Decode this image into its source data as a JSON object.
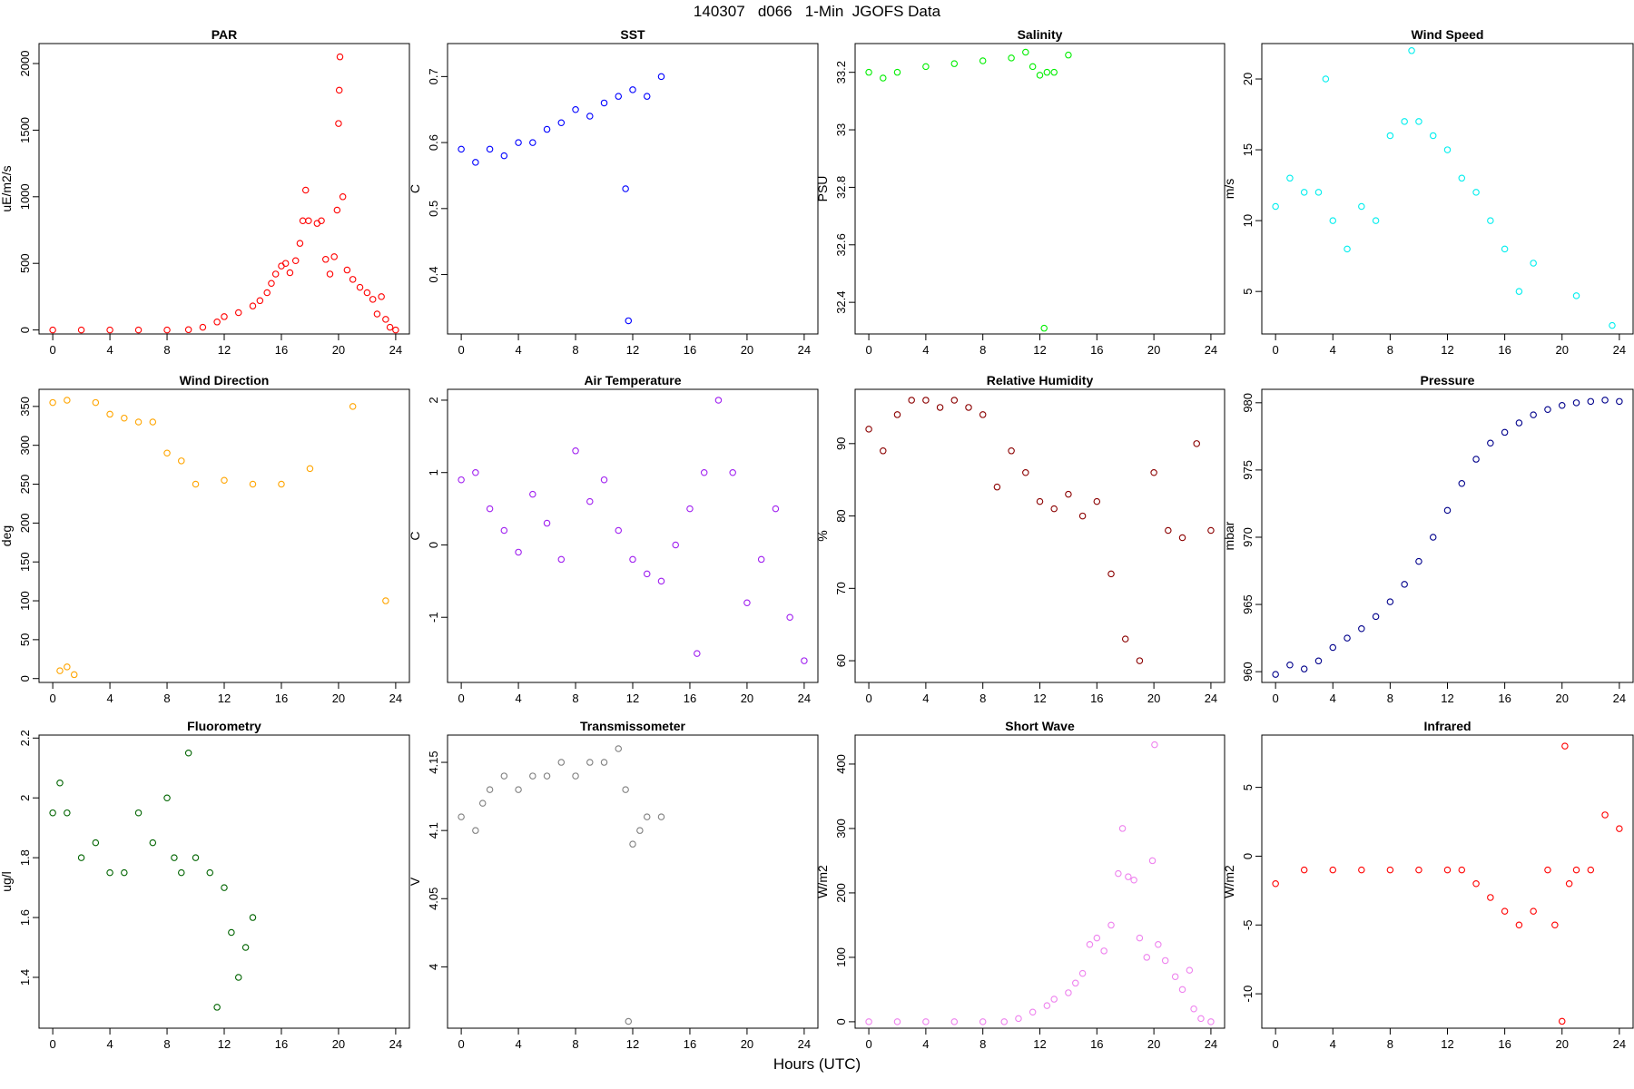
{
  "header": {
    "title": "140307   d066   1-Min  JGOFS Data"
  },
  "x_axis_label": "Hours (UTC)",
  "chart_data": [
    {
      "id": "par",
      "type": "scatter",
      "title": "PAR",
      "ylabel": "uE/m2/s",
      "color": "#ff0000",
      "xlim": [
        0,
        24
      ],
      "xticks": [
        0,
        4,
        8,
        12,
        16,
        20,
        24
      ],
      "ylim": [
        -30,
        2150
      ],
      "yticks": [
        0,
        500,
        1000,
        1500,
        2000
      ],
      "points": [
        [
          0,
          0
        ],
        [
          2,
          0
        ],
        [
          4,
          0
        ],
        [
          6,
          0
        ],
        [
          8,
          0
        ],
        [
          9.5,
          2
        ],
        [
          10.5,
          20
        ],
        [
          11.5,
          60
        ],
        [
          12,
          100
        ],
        [
          13,
          130
        ],
        [
          14,
          180
        ],
        [
          14.5,
          220
        ],
        [
          15,
          280
        ],
        [
          15.3,
          350
        ],
        [
          15.6,
          420
        ],
        [
          16,
          480
        ],
        [
          16.3,
          500
        ],
        [
          16.6,
          430
        ],
        [
          17,
          520
        ],
        [
          17.3,
          650
        ],
        [
          17.5,
          820
        ],
        [
          17.7,
          1050
        ],
        [
          17.9,
          820
        ],
        [
          18.5,
          800
        ],
        [
          18.8,
          820
        ],
        [
          19.1,
          530
        ],
        [
          19.4,
          420
        ],
        [
          19.7,
          550
        ],
        [
          19.9,
          900
        ],
        [
          20,
          1550
        ],
        [
          20.05,
          1800
        ],
        [
          20.1,
          2050
        ],
        [
          20.3,
          1000
        ],
        [
          20.6,
          450
        ],
        [
          21,
          380
        ],
        [
          21.5,
          320
        ],
        [
          22,
          280
        ],
        [
          22.4,
          230
        ],
        [
          22.7,
          120
        ],
        [
          23,
          250
        ],
        [
          23.3,
          80
        ],
        [
          23.6,
          20
        ],
        [
          24,
          0
        ]
      ]
    },
    {
      "id": "sst",
      "type": "scatter",
      "title": "SST",
      "ylabel": "C",
      "color": "#0000ff",
      "xlim": [
        0,
        24
      ],
      "xticks": [
        0,
        4,
        8,
        12,
        16,
        20,
        24
      ],
      "ylim": [
        0.31,
        0.75
      ],
      "yticks": [
        0.4,
        0.5,
        0.6,
        0.7
      ],
      "points": [
        [
          0,
          0.59
        ],
        [
          1,
          0.57
        ],
        [
          2,
          0.59
        ],
        [
          3,
          0.58
        ],
        [
          4,
          0.6
        ],
        [
          5,
          0.6
        ],
        [
          6,
          0.62
        ],
        [
          7,
          0.63
        ],
        [
          8,
          0.65
        ],
        [
          9,
          0.64
        ],
        [
          10,
          0.66
        ],
        [
          11,
          0.67
        ],
        [
          11.5,
          0.53
        ],
        [
          11.7,
          0.33
        ],
        [
          12,
          0.68
        ],
        [
          13,
          0.67
        ],
        [
          14,
          0.7
        ]
      ]
    },
    {
      "id": "salinity",
      "type": "scatter",
      "title": "Salinity",
      "ylabel": "PSU",
      "color": "#00ee00",
      "xlim": [
        0,
        24
      ],
      "xticks": [
        0,
        4,
        8,
        12,
        16,
        20,
        24
      ],
      "ylim": [
        32.29,
        33.3
      ],
      "yticks": [
        32.4,
        32.6,
        32.8,
        33.0,
        33.2
      ],
      "points": [
        [
          0,
          33.2
        ],
        [
          1,
          33.18
        ],
        [
          2,
          33.2
        ],
        [
          4,
          33.22
        ],
        [
          6,
          33.23
        ],
        [
          8,
          33.24
        ],
        [
          10,
          33.25
        ],
        [
          11,
          33.27
        ],
        [
          11.5,
          33.22
        ],
        [
          12,
          33.19
        ],
        [
          12.5,
          33.2
        ],
        [
          13,
          33.2
        ],
        [
          14,
          33.26
        ],
        [
          12.3,
          32.31
        ]
      ]
    },
    {
      "id": "wind-speed",
      "type": "scatter",
      "title": "Wind Speed",
      "ylabel": "m/s",
      "color": "#00eeee",
      "xlim": [
        0,
        24
      ],
      "xticks": [
        0,
        4,
        8,
        12,
        16,
        20,
        24
      ],
      "ylim": [
        2,
        22.5
      ],
      "yticks": [
        5,
        10,
        15,
        20
      ],
      "points": [
        [
          0,
          11
        ],
        [
          1,
          13
        ],
        [
          2,
          12
        ],
        [
          3,
          12
        ],
        [
          3.5,
          20
        ],
        [
          4,
          10
        ],
        [
          5,
          8
        ],
        [
          6,
          11
        ],
        [
          7,
          10
        ],
        [
          8,
          16
        ],
        [
          9,
          17
        ],
        [
          9.5,
          22
        ],
        [
          10,
          17
        ],
        [
          11,
          16
        ],
        [
          12,
          15
        ],
        [
          13,
          13
        ],
        [
          14,
          12
        ],
        [
          15,
          10
        ],
        [
          16,
          8
        ],
        [
          17,
          5
        ],
        [
          18,
          7
        ],
        [
          21,
          4.7
        ],
        [
          23.5,
          2.6
        ]
      ]
    },
    {
      "id": "wind-direction",
      "type": "scatter",
      "title": "Wind Direction",
      "ylabel": "deg",
      "color": "#ffa500",
      "xlim": [
        0,
        24
      ],
      "xticks": [
        0,
        4,
        8,
        12,
        16,
        20,
        24
      ],
      "ylim": [
        -5,
        372
      ],
      "yticks": [
        0,
        50,
        100,
        150,
        200,
        250,
        300,
        350
      ],
      "points": [
        [
          0,
          355
        ],
        [
          1,
          358
        ],
        [
          0.5,
          10
        ],
        [
          1,
          15
        ],
        [
          1.5,
          5
        ],
        [
          3,
          355
        ],
        [
          4,
          340
        ],
        [
          5,
          335
        ],
        [
          6,
          330
        ],
        [
          7,
          330
        ],
        [
          8,
          290
        ],
        [
          9,
          280
        ],
        [
          10,
          250
        ],
        [
          12,
          255
        ],
        [
          14,
          250
        ],
        [
          16,
          250
        ],
        [
          18,
          270
        ],
        [
          21,
          350
        ],
        [
          23.3,
          100
        ]
      ]
    },
    {
      "id": "air-temperature",
      "type": "scatter",
      "title": "Air Temperature",
      "ylabel": "C",
      "color": "#a020f0",
      "xlim": [
        0,
        24
      ],
      "xticks": [
        0,
        4,
        8,
        12,
        16,
        20,
        24
      ],
      "ylim": [
        -1.9,
        2.15
      ],
      "yticks": [
        -1,
        0,
        1,
        2
      ],
      "points": [
        [
          0,
          0.9
        ],
        [
          1,
          1.0
        ],
        [
          2,
          0.5
        ],
        [
          3,
          0.2
        ],
        [
          4,
          -0.1
        ],
        [
          5,
          0.7
        ],
        [
          6,
          0.3
        ],
        [
          7,
          -0.2
        ],
        [
          8,
          1.3
        ],
        [
          9,
          0.6
        ],
        [
          10,
          0.9
        ],
        [
          11,
          0.2
        ],
        [
          12,
          -0.2
        ],
        [
          13,
          -0.4
        ],
        [
          14,
          -0.5
        ],
        [
          15,
          0
        ],
        [
          16,
          0.5
        ],
        [
          16.5,
          -1.5
        ],
        [
          17,
          1.0
        ],
        [
          18,
          2.0
        ],
        [
          19,
          1.0
        ],
        [
          20,
          -0.8
        ],
        [
          21,
          -0.2
        ],
        [
          22,
          0.5
        ],
        [
          23,
          -1.0
        ],
        [
          24,
          -1.6
        ]
      ]
    },
    {
      "id": "relative-humidity",
      "type": "scatter",
      "title": "Relative Humidity",
      "ylabel": "%",
      "color": "#8b0000",
      "xlim": [
        0,
        24
      ],
      "xticks": [
        0,
        4,
        8,
        12,
        16,
        20,
        24
      ],
      "ylim": [
        57,
        97.5
      ],
      "yticks": [
        60,
        70,
        80,
        90
      ],
      "points": [
        [
          0,
          92
        ],
        [
          1,
          89
        ],
        [
          2,
          94
        ],
        [
          3,
          96
        ],
        [
          4,
          96
        ],
        [
          5,
          95
        ],
        [
          6,
          96
        ],
        [
          7,
          95
        ],
        [
          8,
          94
        ],
        [
          9,
          84
        ],
        [
          10,
          89
        ],
        [
          11,
          86
        ],
        [
          12,
          82
        ],
        [
          13,
          81
        ],
        [
          14,
          83
        ],
        [
          15,
          80
        ],
        [
          16,
          82
        ],
        [
          17,
          72
        ],
        [
          18,
          63
        ],
        [
          19,
          60
        ],
        [
          20,
          86
        ],
        [
          21,
          78
        ],
        [
          22,
          77
        ],
        [
          23,
          90
        ],
        [
          24,
          78
        ]
      ]
    },
    {
      "id": "pressure",
      "type": "scatter",
      "title": "Pressure",
      "ylabel": "mbar",
      "color": "#00008b",
      "xlim": [
        0,
        24
      ],
      "xticks": [
        0,
        4,
        8,
        12,
        16,
        20,
        24
      ],
      "ylim": [
        959.2,
        981
      ],
      "yticks": [
        960,
        965,
        970,
        975,
        980
      ],
      "points": [
        [
          0,
          959.8
        ],
        [
          1,
          960.5
        ],
        [
          2,
          960.2
        ],
        [
          3,
          960.8
        ],
        [
          4,
          961.8
        ],
        [
          5,
          962.5
        ],
        [
          6,
          963.2
        ],
        [
          7,
          964.1
        ],
        [
          8,
          965.2
        ],
        [
          9,
          966.5
        ],
        [
          10,
          968.2
        ],
        [
          11,
          970
        ],
        [
          12,
          972
        ],
        [
          13,
          974
        ],
        [
          14,
          975.8
        ],
        [
          15,
          977
        ],
        [
          16,
          977.8
        ],
        [
          17,
          978.5
        ],
        [
          18,
          979.1
        ],
        [
          19,
          979.5
        ],
        [
          20,
          979.8
        ],
        [
          21,
          980
        ],
        [
          22,
          980.1
        ],
        [
          23,
          980.2
        ],
        [
          24,
          980.1
        ]
      ]
    },
    {
      "id": "fluorometry",
      "type": "scatter",
      "title": "Fluorometry",
      "ylabel": "ug/l",
      "color": "#006400",
      "xlim": [
        0,
        24
      ],
      "xticks": [
        0,
        4,
        8,
        12,
        16,
        20,
        24
      ],
      "ylim": [
        1.23,
        2.21
      ],
      "yticks": [
        1.4,
        1.6,
        1.8,
        2.0,
        2.2
      ],
      "points": [
        [
          0,
          1.95
        ],
        [
          0.5,
          2.05
        ],
        [
          1,
          1.95
        ],
        [
          2,
          1.8
        ],
        [
          3,
          1.85
        ],
        [
          4,
          1.75
        ],
        [
          5,
          1.75
        ],
        [
          6,
          1.95
        ],
        [
          7,
          1.85
        ],
        [
          8,
          2.0
        ],
        [
          8.5,
          1.8
        ],
        [
          9,
          1.75
        ],
        [
          9.5,
          2.15
        ],
        [
          10,
          1.8
        ],
        [
          11,
          1.75
        ],
        [
          11.5,
          1.3
        ],
        [
          12,
          1.7
        ],
        [
          12.5,
          1.55
        ],
        [
          13,
          1.4
        ],
        [
          13.5,
          1.5
        ],
        [
          14,
          1.6
        ]
      ]
    },
    {
      "id": "transmissometer",
      "type": "scatter",
      "title": "Transmissometer",
      "ylabel": "V",
      "color": "#808080",
      "xlim": [
        0,
        24
      ],
      "xticks": [
        0,
        4,
        8,
        12,
        16,
        20,
        24
      ],
      "ylim": [
        3.955,
        4.17
      ],
      "yticks": [
        4.0,
        4.05,
        4.1,
        4.15
      ],
      "points": [
        [
          0,
          4.11
        ],
        [
          1,
          4.1
        ],
        [
          1.5,
          4.12
        ],
        [
          2,
          4.13
        ],
        [
          3,
          4.14
        ],
        [
          4,
          4.13
        ],
        [
          5,
          4.14
        ],
        [
          6,
          4.14
        ],
        [
          7,
          4.15
        ],
        [
          8,
          4.14
        ],
        [
          9,
          4.15
        ],
        [
          10,
          4.15
        ],
        [
          11,
          4.16
        ],
        [
          11.5,
          4.13
        ],
        [
          11.7,
          3.96
        ],
        [
          12,
          4.09
        ],
        [
          12.5,
          4.1
        ],
        [
          13,
          4.11
        ],
        [
          14,
          4.11
        ]
      ]
    },
    {
      "id": "short-wave",
      "type": "scatter",
      "title": "Short Wave",
      "ylabel": "W/m2",
      "color": "#ee82ee",
      "xlim": [
        0,
        24
      ],
      "xticks": [
        0,
        4,
        8,
        12,
        16,
        20,
        24
      ],
      "ylim": [
        -10,
        445
      ],
      "yticks": [
        0,
        100,
        200,
        300,
        400
      ],
      "points": [
        [
          0,
          0
        ],
        [
          2,
          0
        ],
        [
          4,
          0
        ],
        [
          6,
          0
        ],
        [
          8,
          0
        ],
        [
          9.5,
          0
        ],
        [
          10.5,
          5
        ],
        [
          11.5,
          15
        ],
        [
          12.5,
          25
        ],
        [
          13,
          35
        ],
        [
          14,
          45
        ],
        [
          14.5,
          60
        ],
        [
          15,
          75
        ],
        [
          15.5,
          120
        ],
        [
          16,
          130
        ],
        [
          16.5,
          110
        ],
        [
          17,
          150
        ],
        [
          17.5,
          230
        ],
        [
          17.8,
          300
        ],
        [
          18.2,
          225
        ],
        [
          18.6,
          220
        ],
        [
          19,
          130
        ],
        [
          19.5,
          100
        ],
        [
          19.9,
          250
        ],
        [
          20.05,
          430
        ],
        [
          20.3,
          120
        ],
        [
          20.8,
          95
        ],
        [
          21.5,
          70
        ],
        [
          22,
          50
        ],
        [
          22.5,
          80
        ],
        [
          22.8,
          20
        ],
        [
          23.3,
          5
        ],
        [
          24,
          0
        ]
      ]
    },
    {
      "id": "infrared",
      "type": "scatter",
      "title": "Infrared",
      "ylabel": "W/m2",
      "color": "#ff0000",
      "xlim": [
        0,
        24
      ],
      "xticks": [
        0,
        4,
        8,
        12,
        16,
        20,
        24
      ],
      "ylim": [
        -12.5,
        8.8
      ],
      "yticks": [
        -10,
        -5,
        0,
        5
      ],
      "points": [
        [
          0,
          -2
        ],
        [
          2,
          -1
        ],
        [
          4,
          -1
        ],
        [
          6,
          -1
        ],
        [
          8,
          -1
        ],
        [
          10,
          -1
        ],
        [
          12,
          -1
        ],
        [
          13,
          -1
        ],
        [
          14,
          -2
        ],
        [
          15,
          -3
        ],
        [
          16,
          -4
        ],
        [
          17,
          -5
        ],
        [
          18,
          -4
        ],
        [
          19,
          -1
        ],
        [
          19.5,
          -5
        ],
        [
          20,
          -12
        ],
        [
          20.2,
          8
        ],
        [
          20.5,
          -2
        ],
        [
          21,
          -1
        ],
        [
          22,
          -1
        ],
        [
          23,
          3
        ],
        [
          24,
          2
        ]
      ]
    }
  ]
}
